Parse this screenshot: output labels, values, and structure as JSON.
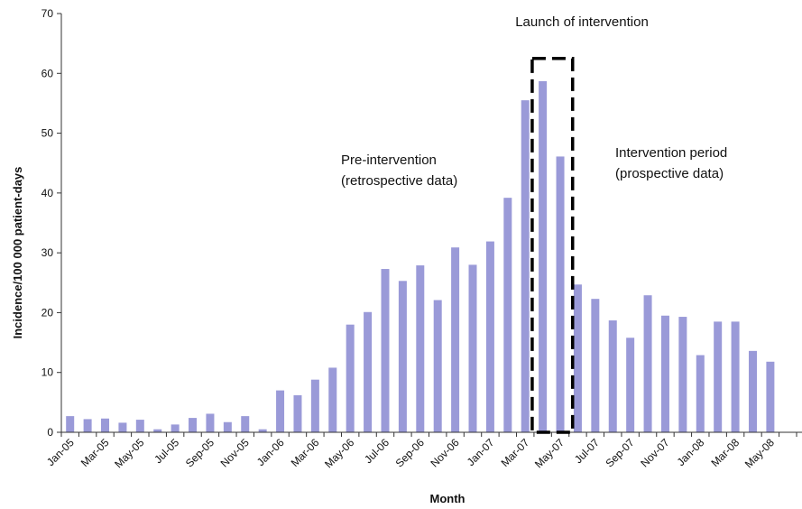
{
  "chart_data": {
    "type": "bar",
    "xlabel": "Month",
    "ylabel": "Incidence/100 000 patient-days",
    "ylim": [
      0,
      70
    ],
    "yticks": [
      "0",
      "10",
      "20",
      "30",
      "40",
      "50",
      "60",
      "70"
    ],
    "grid": false,
    "legend": "none",
    "bar_color": "#9a9ad8",
    "categories": [
      "Jan-05",
      "Feb-05",
      "Mar-05",
      "Apr-05",
      "May-05",
      "Jun-05",
      "Jul-05",
      "Aug-05",
      "Sep-05",
      "Oct-05",
      "Nov-05",
      "Dec-05",
      "Jan-06",
      "Feb-06",
      "Mar-06",
      "Apr-06",
      "May-06",
      "Jun-06",
      "Jul-06",
      "Aug-06",
      "Sep-06",
      "Oct-06",
      "Nov-06",
      "Dec-06",
      "Jan-07",
      "Feb-07",
      "Mar-07",
      "Apr-07",
      "May-07",
      "Jun-07",
      "Jul-07",
      "Aug-07",
      "Sep-07",
      "Oct-07",
      "Nov-07",
      "Dec-07",
      "Jan-08",
      "Feb-08",
      "Mar-08",
      "Apr-08",
      "May-08",
      "Jun-08"
    ],
    "tick_labels": [
      "Jan-05",
      "Mar-05",
      "May-05",
      "Jul-05",
      "Sep-05",
      "Nov-05",
      "Jan-06",
      "Mar-06",
      "May-06",
      "Jul-06",
      "Sep-06",
      "Nov-06",
      "Jan-07",
      "Mar-07",
      "May-07",
      "Jul-07",
      "Sep-07",
      "Nov-07",
      "Jan-08",
      "Mar-08",
      "May-08"
    ],
    "values": [
      2.7,
      2.2,
      2.3,
      1.6,
      2.1,
      0.5,
      1.3,
      2.4,
      3.1,
      1.7,
      2.7,
      0.5,
      7.0,
      6.2,
      8.8,
      10.8,
      18.0,
      20.1,
      27.3,
      25.3,
      27.9,
      22.1,
      30.9,
      28.0,
      31.9,
      39.2,
      55.5,
      58.7,
      46.1,
      24.7,
      22.3,
      18.7,
      15.8,
      22.9,
      19.5,
      19.3,
      12.9,
      18.5,
      18.5,
      13.6,
      11.8,
      0
    ],
    "annotations": {
      "launch": "Launch of intervention",
      "pre_line1": "Pre-intervention",
      "pre_line2": "(retrospective data)",
      "int_line1": "Intervention period",
      "int_line2": "(prospective data)"
    },
    "highlight_box": {
      "from": "Apr-07",
      "to": "May-07"
    }
  }
}
